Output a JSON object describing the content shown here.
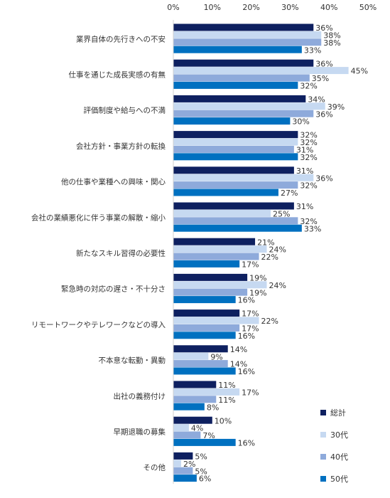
{
  "chart_data": {
    "type": "bar",
    "orientation": "horizontal",
    "title": "",
    "xlabel": "",
    "ylabel": "",
    "xlim": [
      0,
      50
    ],
    "ticks": [
      "0%",
      "10%",
      "20%",
      "30%",
      "40%",
      "50%"
    ],
    "tick_values": [
      0,
      10,
      20,
      30,
      40,
      50
    ],
    "grid": false,
    "legend_position": "bottom-right",
    "categories": [
      "業界自体の先行きへの不安",
      "仕事を通じた成長実感の有無",
      "評価制度や給与への不満",
      "会社方針・事業方針の転換",
      "他の仕事や業種への興味・関心",
      "会社の業績悪化に伴う事業の解散・縮小",
      "新たなスキル習得の必要性",
      "緊急時の対応の遅さ・不十分さ",
      "リモートワークやテレワークなどの導入",
      "不本意な転勤・異動",
      "出社の義務付け",
      "早期退職の募集",
      "その他"
    ],
    "series": [
      {
        "name": "総計",
        "color": "#0e2060",
        "values": [
          36,
          36,
          34,
          32,
          31,
          31,
          21,
          19,
          17,
          14,
          11,
          10,
          5
        ]
      },
      {
        "name": "30代",
        "color": "#c6d9f1",
        "values": [
          38,
          45,
          39,
          32,
          36,
          25,
          24,
          24,
          22,
          9,
          17,
          4,
          2
        ]
      },
      {
        "name": "40代",
        "color": "#8eaadb",
        "values": [
          38,
          35,
          36,
          31,
          32,
          32,
          22,
          19,
          17,
          14,
          11,
          7,
          5
        ]
      },
      {
        "name": "50代",
        "color": "#0070c0",
        "values": [
          33,
          32,
          30,
          32,
          27,
          33,
          17,
          16,
          16,
          16,
          8,
          16,
          6
        ]
      }
    ],
    "value_suffix": "%"
  }
}
